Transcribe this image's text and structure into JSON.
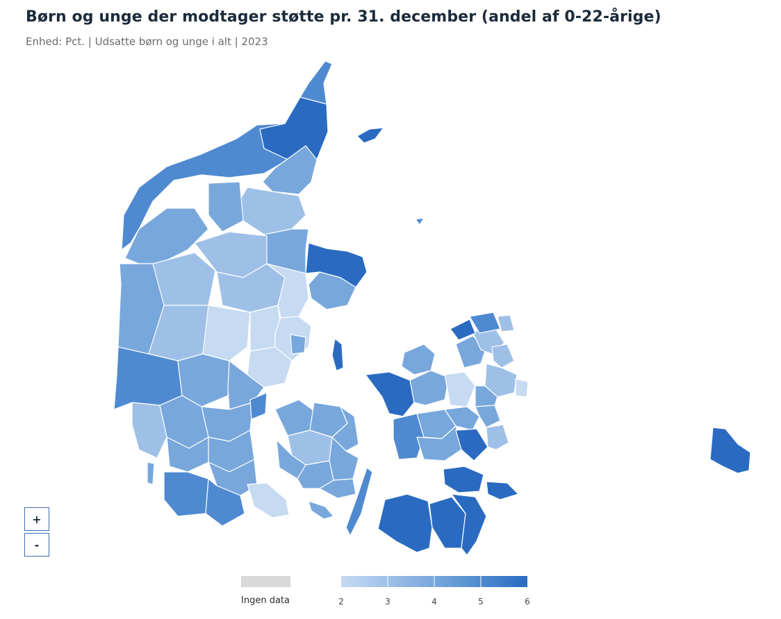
{
  "header": {
    "title": "Børn og unge der modtager støtte pr. 31. december (andel af 0-22-årige)",
    "subtitle": "Enhed: Pct. | Udsatte børn og unge i alt | 2023"
  },
  "zoom": {
    "in_label": "+",
    "out_label": "-"
  },
  "legend": {
    "no_data_label": "Ingen data",
    "no_data_color": "#d9d9d9",
    "scale_ticks": [
      "2",
      "3",
      "4",
      "5",
      "6"
    ],
    "scale_colors": [
      "#c6daf2",
      "#9ec0e7",
      "#78a7dc",
      "#4f8ad0",
      "#2a6bc1"
    ]
  },
  "map": {
    "colors": {
      "light": "#c6daf2",
      "light_mid": "#9ec0e7",
      "mid": "#78a7dc",
      "mid_dark": "#4f8ad0",
      "dark": "#2a6bc1",
      "border": "#ffffff"
    }
  }
}
